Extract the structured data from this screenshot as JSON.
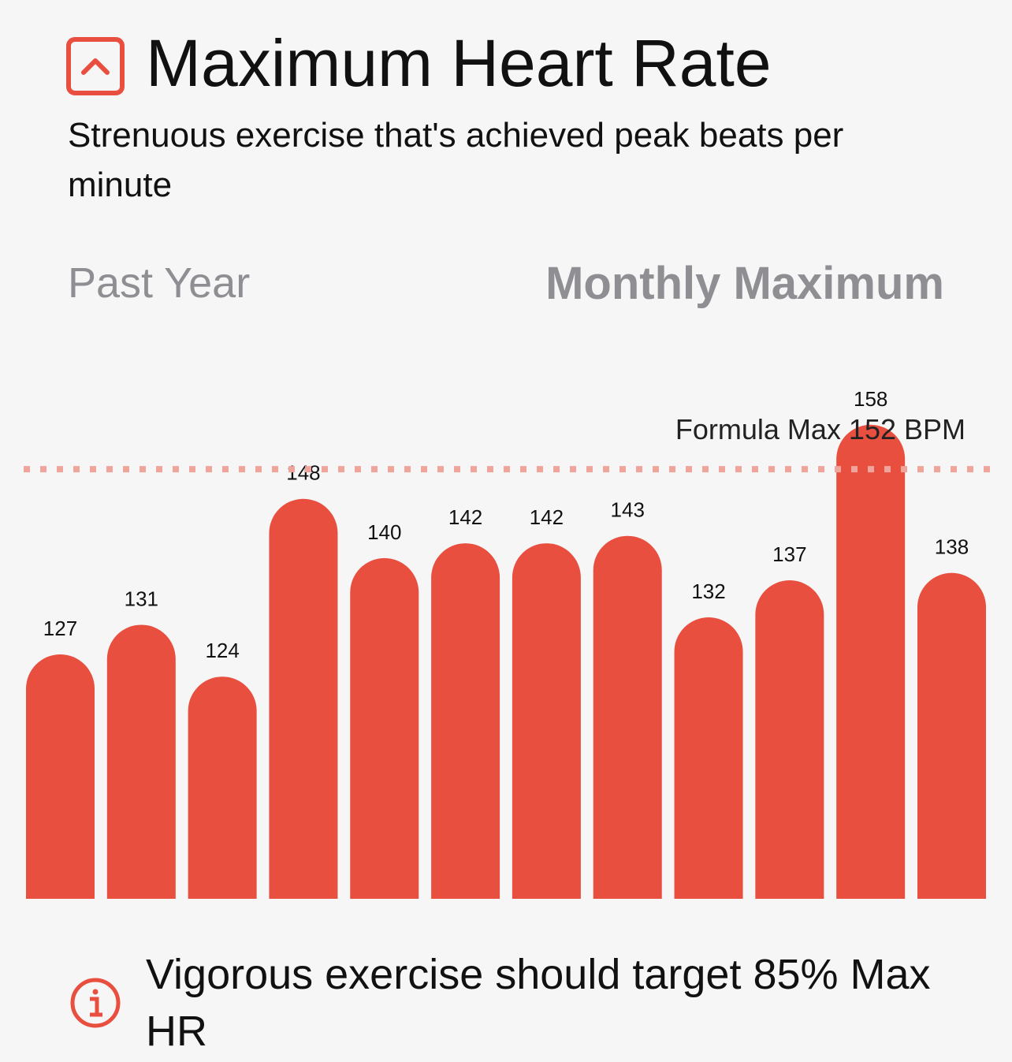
{
  "chart_data": {
    "type": "bar",
    "title": "Maximum Heart Rate",
    "subtitle": "Strenuous exercise that's achieved peak beats per minute",
    "range_label": "Past Year",
    "aggregate_label": "Monthly Maximum",
    "categories": [
      null,
      null,
      null,
      null,
      null,
      null,
      null,
      null,
      null,
      null,
      null,
      null
    ],
    "values": [
      127,
      131,
      124,
      148,
      140,
      142,
      142,
      143,
      132,
      137,
      158,
      138
    ],
    "color": "#e84f3f",
    "ylim": [
      94,
      160
    ],
    "reference_line": {
      "value": 152,
      "label": "Formula Max 152 BPM",
      "color": "#f0a59c"
    },
    "note": "Vigorous exercise should target 85% Max HR"
  }
}
